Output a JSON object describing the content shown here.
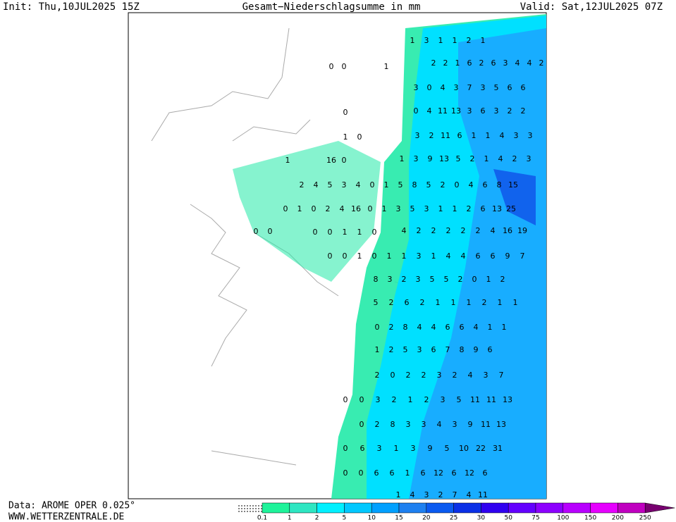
{
  "header": {
    "init": "Init: Thu,10JUL2025 15Z",
    "title": "Gesamt−Niederschlagsumme in mm",
    "valid": "Valid: Sat,12JUL2025 07Z"
  },
  "map": {
    "rows": [
      [
        1,
        3,
        1,
        1,
        2,
        1
      ],
      [
        0,
        0
      ],
      [
        1
      ],
      [
        2,
        2,
        1,
        6,
        2,
        6,
        3,
        4,
        4,
        2
      ],
      [
        3,
        0,
        4,
        3,
        7,
        3,
        5,
        6,
        6
      ],
      [
        0
      ],
      [
        0,
        4,
        11,
        13,
        3,
        6,
        3,
        2,
        2
      ],
      [
        1,
        0
      ],
      [
        3,
        2,
        11,
        6,
        1,
        1,
        4,
        3,
        3
      ],
      [
        1
      ],
      [
        16,
        0
      ],
      [
        1,
        3,
        9,
        13,
        5,
        2,
        1,
        4,
        2,
        3
      ],
      [
        2,
        4,
        5,
        3,
        4,
        0,
        1,
        5,
        8,
        5,
        2,
        0,
        4,
        6,
        8,
        15
      ],
      [
        0,
        1,
        0,
        2,
        4,
        16,
        0,
        1,
        3,
        5,
        3,
        1,
        1,
        2,
        6,
        13,
        25
      ],
      [
        0,
        0
      ],
      [
        0,
        0,
        1,
        1,
        0
      ],
      [
        4,
        2,
        2,
        2,
        2,
        2,
        4,
        16,
        19
      ],
      [
        0,
        0,
        1,
        0,
        1,
        1,
        3,
        1,
        4,
        4,
        6,
        6,
        9,
        7
      ],
      [
        8,
        3,
        2,
        3,
        5,
        5,
        2,
        0,
        1,
        2
      ],
      [
        5,
        2,
        6,
        2,
        1,
        1,
        1,
        2,
        1,
        1
      ],
      [
        0,
        2,
        8,
        4,
        4,
        6,
        6,
        4,
        1,
        1
      ],
      [
        1,
        2,
        5,
        3,
        6,
        7,
        8,
        9,
        6
      ],
      [
        2,
        0,
        2,
        2,
        3,
        2,
        4,
        3,
        7
      ],
      [
        0,
        0,
        3,
        2,
        1,
        2,
        3,
        5,
        11,
        11,
        13
      ],
      [
        0,
        2,
        8,
        3,
        3,
        4,
        3,
        9,
        11,
        13
      ],
      [
        0,
        6,
        3,
        1,
        3,
        9,
        5,
        10,
        22,
        31
      ],
      [
        0,
        0,
        6,
        6,
        1,
        6,
        12,
        6,
        12,
        6
      ],
      [
        1,
        4,
        3,
        2,
        7,
        4,
        11
      ]
    ]
  },
  "legend": {
    "labels": [
      0.1,
      1,
      2,
      5,
      10,
      15,
      20,
      25,
      30,
      50,
      75,
      100,
      150,
      200,
      250
    ],
    "colors": [
      "#1ef39a",
      "#2ee6c2",
      "#00f0ff",
      "#00c8ff",
      "#00a0ff",
      "#1e80f0",
      "#0a5af0",
      "#0a30e6",
      "#3000f0",
      "#6400ff",
      "#8c00ff",
      "#b800ff",
      "#e600ff",
      "#c000c0",
      "#900090"
    ],
    "overflow_color": "#780070"
  },
  "footer": {
    "source": "Data: AROME OPER 0.025°",
    "site": "WWW.WETTERZENTRALE.DE"
  }
}
